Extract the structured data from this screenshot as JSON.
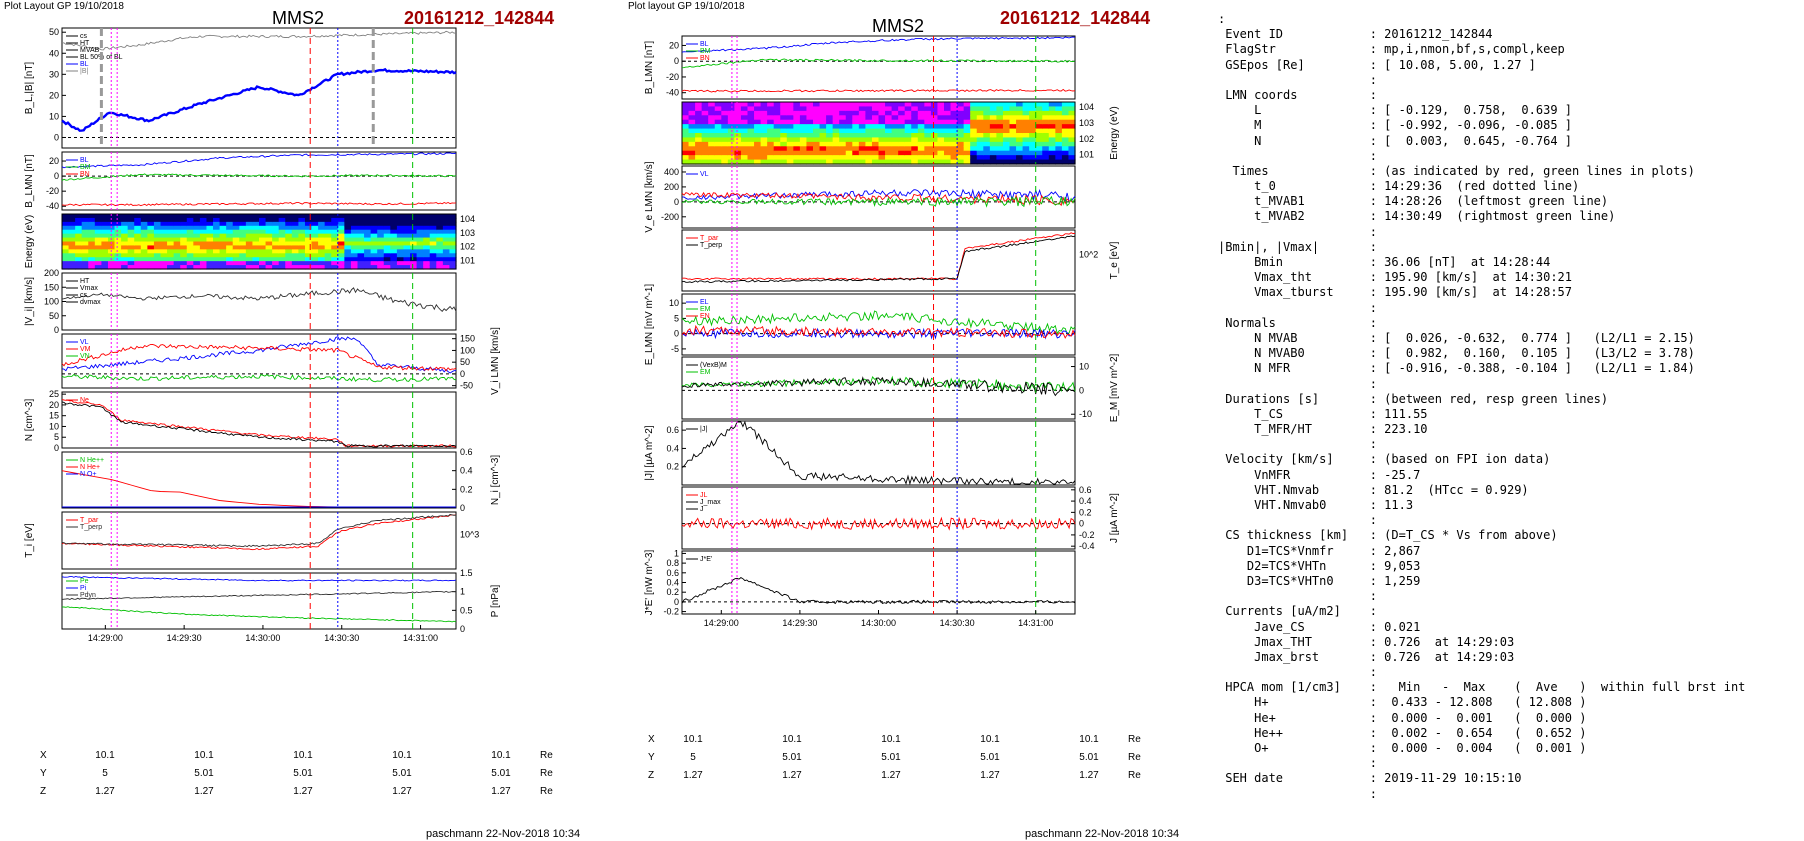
{
  "left": {
    "layout_label": "Plot Layout GP 19/10/2018",
    "spacecraft": "MMS2",
    "event": "20161212_142844",
    "footer": "paschmann 22-Nov-2018 10:34",
    "time_ticks": [
      "14:29:00",
      "14:29:30",
      "14:30:00",
      "14:30:30",
      "14:31:00"
    ],
    "coords": [
      {
        "label": "X",
        "values": [
          "10.1",
          "10.1",
          "10.1",
          "10.1",
          "10.1"
        ],
        "unit": "Re"
      },
      {
        "label": "Y",
        "values": [
          "5",
          "5.01",
          "5.01",
          "5.01",
          "5.01"
        ],
        "unit": "Re"
      },
      {
        "label": "Z",
        "values": [
          "1.27",
          "1.27",
          "1.27",
          "1.27",
          "1.27"
        ],
        "unit": "Re"
      }
    ]
  },
  "right": {
    "layout_label": "Plot layout GP 19/10/2018",
    "spacecraft": "MMS2",
    "event": "20161212_142844",
    "footer": "paschmann 22-Nov-2018 10:34",
    "time_ticks": [
      "14:29:00",
      "14:29:30",
      "14:30:00",
      "14:30:30",
      "14:31:00"
    ],
    "coords": [
      {
        "label": "X",
        "values": [
          "10.1",
          "10.1",
          "10.1",
          "10.1",
          "10.1"
        ],
        "unit": "Re"
      },
      {
        "label": "Y",
        "values": [
          "5",
          "5.01",
          "5.01",
          "5.01",
          "5.01"
        ],
        "unit": "Re"
      },
      {
        "label": "Z",
        "values": [
          "1.27",
          "1.27",
          "1.27",
          "1.27",
          "1.27"
        ],
        "unit": "Re"
      }
    ]
  },
  "info_lines": [
    ":",
    " Event ID            : 20161212_142844",
    " FlagStr             : mp,i,nmon,bf,s,compl,keep",
    " GSEpos [Re]         : [ 10.08, 5.00, 1.27 ]",
    "                     :",
    " LMN coords          :",
    "     L               : [ -0.129,  0.758,  0.639 ]",
    "     M               : [ -0.992, -0.096, -0.085 ]",
    "     N               : [  0.003,  0.645, -0.764 ]",
    "                     :",
    "  Times              : (as indicated by red, green lines in plots)",
    "     t_0             : 14:29:36  (red dotted line)",
    "     t_MVAB1         : 14:28:26  (leftmost green line)",
    "     t_MVAB2         : 14:30:49  (rightmost green line)",
    "                     :",
    "|Bmin|, |Vmax|       :",
    "     Bmin            : 36.06 [nT]  at 14:28:44",
    "     Vmax_tht        : 195.90 [km/s]  at 14:30:21",
    "     Vmax_tburst     : 195.90 [km/s]  at 14:28:57",
    "                     :",
    " Normals             :",
    "     N MVAB          : [  0.026, -0.632,  0.774 ]   (L2/L1 = 2.15)",
    "     N MVAB0         : [  0.982,  0.160,  0.105 ]   (L3/L2 = 3.78)",
    "     N MFR           : [ -0.916, -0.388, -0.104 ]   (L2/L1 = 1.84)",
    "                     :",
    " Durations [s]       : (between red, resp green lines)",
    "     T_CS            : 111.55",
    "     T_MFR/HT        : 223.10",
    "                     :",
    " Velocity [km/s]     : (based on FPI ion data)",
    "     VnMFR           : -25.7",
    "     VHT.Nmvab       : 81.2  (HTcc = 0.929)",
    "     VHT.Nmvab0      : 11.3",
    "                     :",
    " CS thickness [km]   : (D=T_CS * Vs from above)",
    "    D1=TCS*Vnmfr     : 2,867",
    "    D2=TCS*VHTn      : 9,053",
    "    D3=TCS*VHTn0     : 1,259",
    "                     :",
    " Currents [uA/m2]    :",
    "     Jave_CS         : 0.021",
    "     Jmax_THT        : 0.726  at 14:29:03",
    "     Jmax_brst       : 0.726  at 14:29:03",
    "                     :",
    " HPCA mom [1/cm3]    :   Min   -  Max    (  Ave   )  within full brst int",
    "     H+              :  0.433 - 12.808   ( 12.808 )",
    "     He+             :  0.000 -  0.001   (  0.000 )",
    "     He++            :  0.002 -  0.654   (  0.652 )",
    "     O+              :  0.000 -  0.004   (  0.001 )",
    "                     :",
    " SEH date            : 2019-11-29 10:15:10",
    "                     :"
  ],
  "chart_data": [
    {
      "type": "line",
      "panel": "left-B",
      "ylabel": "B_L,|B| [nT]",
      "ylim": [
        -5,
        52
      ],
      "yticks": [
        0,
        10,
        20,
        30,
        40,
        50
      ],
      "legend": [
        "cs",
        "HT",
        "MVAB",
        "BL 50% of BL",
        "BL",
        "|B|"
      ],
      "series": [
        {
          "name": "|B|",
          "color": "#808080",
          "x": [
            0,
            0.1,
            0.2,
            0.3,
            0.35,
            0.5,
            0.6,
            0.8,
            1
          ],
          "y": [
            45,
            42,
            44,
            47,
            48,
            48,
            48,
            49,
            50
          ]
        },
        {
          "name": "BL",
          "color": "#0000ff",
          "x": [
            0,
            0.05,
            0.12,
            0.22,
            0.35,
            0.5,
            0.6,
            0.7,
            0.8,
            1
          ],
          "y": [
            8,
            3,
            12,
            8,
            16,
            24,
            20,
            30,
            32,
            31
          ]
        }
      ]
    },
    {
      "type": "line",
      "panel": "left-BLMN",
      "ylabel": "B_LMN [nT]",
      "ylim": [
        -45,
        32
      ],
      "yticks": [
        -40,
        -20,
        0,
        20
      ],
      "legend": [
        "BL",
        "BM",
        "BN"
      ],
      "series": [
        {
          "name": "BL",
          "color": "#0000ff",
          "x": [
            0,
            0.2,
            0.4,
            0.6,
            0.8,
            1
          ],
          "y": [
            12,
            15,
            24,
            28,
            29,
            30
          ]
        },
        {
          "name": "BM",
          "color": "#00c000",
          "x": [
            0,
            0.2,
            0.4,
            0.6,
            0.8,
            1
          ],
          "y": [
            -5,
            2,
            1,
            0,
            1,
            0
          ]
        },
        {
          "name": "BN",
          "color": "#ff0000",
          "x": [
            0,
            0.2,
            0.4,
            0.6,
            0.8,
            1
          ],
          "y": [
            -38,
            -38,
            -37,
            -36,
            -37,
            -36
          ]
        }
      ]
    },
    {
      "type": "heatmap",
      "panel": "left-ion-spectrogram",
      "ylabel": "Energy (eV)",
      "yticks": [
        "10^1",
        "10^2",
        "10^3",
        "10^4"
      ]
    },
    {
      "type": "line",
      "panel": "left-Vi",
      "ylabel": "|V_i| [km/s]",
      "ylim": [
        0,
        200
      ],
      "yticks": [
        0,
        50,
        100,
        150,
        200
      ],
      "legend": [
        "HT",
        "Vmax",
        "cs",
        "dvmax"
      ],
      "series": [
        {
          "name": "|Vi|",
          "color": "#303030",
          "x": [
            0,
            0.1,
            0.2,
            0.35,
            0.5,
            0.65,
            0.75,
            0.85,
            1
          ],
          "y": [
            110,
            125,
            110,
            120,
            110,
            130,
            140,
            100,
            70
          ]
        }
      ]
    },
    {
      "type": "line",
      "panel": "left-ViLMN",
      "ylabel": "V_i LMN [km/s]",
      "ylim": [
        -60,
        170
      ],
      "yticks": [
        -50,
        0,
        50,
        100,
        150
      ],
      "legend": [
        "VL",
        "VM",
        "VN"
      ],
      "series": [
        {
          "name": "VL",
          "color": "#0000ff",
          "x": [
            0,
            0.2,
            0.5,
            0.7,
            0.75,
            0.8,
            1
          ],
          "y": [
            20,
            50,
            100,
            150,
            150,
            40,
            10
          ]
        },
        {
          "name": "VM",
          "color": "#ff0000",
          "x": [
            0,
            0.2,
            0.5,
            0.7,
            0.8,
            1
          ],
          "y": [
            40,
            120,
            110,
            100,
            30,
            20
          ]
        },
        {
          "name": "VN",
          "color": "#00c000",
          "x": [
            0,
            0.2,
            0.5,
            0.7,
            0.8,
            1
          ],
          "y": [
            -10,
            -20,
            -10,
            -20,
            -25,
            -20
          ]
        }
      ]
    },
    {
      "type": "line",
      "panel": "left-N",
      "ylabel": "N [cm^-3]",
      "ylim": [
        0,
        26
      ],
      "yticks": [
        0,
        5,
        10,
        15,
        20,
        25
      ],
      "legend": [
        "Ne"
      ],
      "series": [
        {
          "name": "Ne",
          "color": "#ff0000",
          "x": [
            0,
            0.1,
            0.15,
            0.3,
            0.5,
            0.7,
            0.72,
            1
          ],
          "y": [
            22,
            20,
            13,
            10,
            6,
            4,
            1,
            1
          ]
        },
        {
          "name": "Ni",
          "color": "#000000",
          "x": [
            0,
            0.1,
            0.15,
            0.3,
            0.5,
            0.7,
            0.72,
            1
          ],
          "y": [
            21,
            19,
            12,
            9,
            5,
            3,
            1,
            1
          ]
        }
      ]
    },
    {
      "type": "line",
      "panel": "left-Ni-HPCA",
      "ylabel": "N_i [cm^-3]",
      "ylim": [
        0,
        0.6
      ],
      "yticks": [
        0,
        0.2,
        0.4,
        0.6
      ],
      "legend": [
        "N He++",
        "N He+",
        "N O+"
      ],
      "series": [
        {
          "name": "N He+",
          "color": "#ff0000",
          "x": [
            0,
            0.13,
            0.23,
            0.3,
            0.4,
            0.5,
            0.6,
            0.7,
            0.8,
            1
          ],
          "y": [
            0.4,
            0.3,
            0.18,
            0.17,
            0.08,
            0.04,
            0.02,
            0.01,
            0.005,
            0
          ]
        },
        {
          "name": "N He++",
          "color": "#00c000",
          "x": [
            0,
            1
          ],
          "y": [
            0.003,
            0.002
          ]
        },
        {
          "name": "N O+",
          "color": "#0000ff",
          "x": [
            0,
            1
          ],
          "y": [
            0.001,
            0.001
          ]
        }
      ]
    },
    {
      "type": "line",
      "panel": "left-Ti",
      "ylabel": "T_i [eV]",
      "yticks": [
        "10^3"
      ],
      "legend": [
        "T_par",
        "T_perp"
      ],
      "series": [
        {
          "name": "T_par",
          "color": "#ff0000",
          "x": [
            0,
            0.5,
            0.65,
            0.7,
            0.8,
            1
          ],
          "y": [
            0.45,
            0.35,
            0.4,
            0.65,
            0.8,
            0.95
          ]
        },
        {
          "name": "T_perp",
          "color": "#303030",
          "x": [
            0,
            0.5,
            0.65,
            0.7,
            0.8,
            1
          ],
          "y": [
            0.45,
            0.4,
            0.45,
            0.7,
            0.85,
            0.95
          ]
        }
      ]
    },
    {
      "type": "line",
      "panel": "left-P",
      "ylabel": "P [nPa]",
      "ylim": [
        0,
        1.5
      ],
      "yticks": [
        0,
        0.5,
        1,
        1.5
      ],
      "legend": [
        "Pe",
        "Pi",
        "Pdyn"
      ],
      "xticks": [
        "14:29:00",
        "14:29:30",
        "14:30:00",
        "14:30:30",
        "14:31:00"
      ],
      "series": [
        {
          "name": "Pi",
          "color": "#0000ff",
          "x": [
            0,
            0.5,
            1
          ],
          "y": [
            1.4,
            1.3,
            1.3
          ]
        },
        {
          "name": "Pe",
          "color": "#00c000",
          "x": [
            0,
            0.3,
            0.6,
            1
          ],
          "y": [
            0.6,
            0.4,
            0.3,
            0.2
          ]
        },
        {
          "name": "Pdyn",
          "color": "#303030",
          "x": [
            0,
            0.5,
            1
          ],
          "y": [
            0.8,
            0.9,
            1.0
          ]
        }
      ]
    },
    {
      "type": "line",
      "panel": "right-BLMN",
      "ylabel": "B_LMN [nT]",
      "ylim": [
        -48,
        32
      ],
      "yticks": [
        -40,
        -20,
        0,
        20
      ],
      "legend": [
        "BL",
        "BM",
        "BN"
      ],
      "series": [
        {
          "name": "BL",
          "color": "#0000ff",
          "x": [
            0,
            0.2,
            0.4,
            0.6,
            1
          ],
          "y": [
            12,
            16,
            24,
            28,
            30
          ]
        },
        {
          "name": "BM",
          "color": "#00c000",
          "x": [
            0,
            0.2,
            0.4,
            1
          ],
          "y": [
            -8,
            2,
            1,
            0
          ]
        },
        {
          "name": "BN",
          "color": "#ff0000",
          "x": [
            0,
            1
          ],
          "y": [
            -38,
            -37
          ]
        }
      ]
    },
    {
      "type": "heatmap",
      "panel": "right-electron-spectrogram",
      "ylabel": "Energy (eV)",
      "yticks": [
        "10^1",
        "10^2",
        "10^3",
        "10^4"
      ]
    },
    {
      "type": "line",
      "panel": "right-Ve",
      "ylabel": "V_e LMN [km/s]",
      "ylim": [
        -350,
        480
      ],
      "yticks": [
        -200,
        0,
        200,
        400
      ],
      "legend": [
        "VL"
      ],
      "series": [
        {
          "name": "VL",
          "color": "#0000ff",
          "x": [
            0,
            0.5,
            1
          ],
          "y": [
            50,
            120,
            80
          ]
        },
        {
          "name": "VM",
          "color": "#ff0000",
          "x": [
            0,
            0.5,
            1
          ],
          "y": [
            100,
            60,
            20
          ]
        },
        {
          "name": "VN",
          "color": "#00c000",
          "x": [
            0,
            1
          ],
          "y": [
            0,
            0
          ]
        }
      ]
    },
    {
      "type": "line",
      "panel": "right-Te",
      "ylabel": "T_e [eV]",
      "yticks": [
        "10^2"
      ],
      "legend": [
        "T_par",
        "T_perp"
      ],
      "series": [
        {
          "name": "T_par",
          "color": "#ff0000",
          "x": [
            0,
            0.7,
            0.72,
            1
          ],
          "y": [
            0.2,
            0.2,
            0.7,
            0.95
          ]
        },
        {
          "name": "T_perp",
          "color": "#000000",
          "x": [
            0,
            0.7,
            0.72,
            1
          ],
          "y": [
            0.15,
            0.2,
            0.65,
            0.9
          ]
        }
      ]
    },
    {
      "type": "line",
      "panel": "right-E",
      "ylabel": "E_LMN [mV m^-1]",
      "ylim": [
        -7,
        13
      ],
      "yticks": [
        -5,
        0,
        5,
        10
      ],
      "legend": [
        "EL",
        "EM",
        "EN"
      ],
      "series": [
        {
          "name": "EM",
          "color": "#00c000",
          "x": [
            0,
            0.5,
            1
          ],
          "y": [
            4,
            6,
            1
          ]
        },
        {
          "name": "EL",
          "color": "#0000ff",
          "x": [
            0,
            1
          ],
          "y": [
            0,
            0
          ]
        },
        {
          "name": "EN",
          "color": "#ff0000",
          "x": [
            0,
            1
          ],
          "y": [
            1,
            0
          ]
        }
      ]
    },
    {
      "type": "line",
      "panel": "right-EM",
      "ylabel": "E_M [mV m^-2]",
      "ylim": [
        -12,
        14
      ],
      "yticks": [
        -10,
        0,
        10
      ],
      "legend": [
        "(VexB)M",
        "EM"
      ],
      "series": [
        {
          "name": "EM",
          "color": "#00c000",
          "x": [
            0,
            0.5,
            1
          ],
          "y": [
            2,
            4,
            1
          ]
        },
        {
          "name": "(VexB)M",
          "color": "#000000",
          "x": [
            0,
            0.5,
            1
          ],
          "y": [
            2,
            4,
            0
          ]
        }
      ]
    },
    {
      "type": "line",
      "panel": "right-J",
      "ylabel": "|J| [µA m^-2]",
      "ylim": [
        0,
        0.7
      ],
      "yticks": [
        0.2,
        0.4,
        0.6
      ],
      "legend": [
        "|J|"
      ],
      "series": [
        {
          "name": "|J|",
          "color": "#000000",
          "x": [
            0,
            0.15,
            0.3,
            0.6,
            1
          ],
          "y": [
            0.2,
            0.7,
            0.1,
            0.05,
            0.02
          ]
        }
      ]
    },
    {
      "type": "line",
      "panel": "right-JLMN",
      "ylabel": "J [µA m^-2]",
      "ylim": [
        -0.45,
        0.65
      ],
      "yticks": [
        -0.4,
        -0.2,
        0,
        0.2,
        0.4,
        0.6
      ],
      "legend": [
        "JL",
        "J_max",
        "J"
      ],
      "series": [
        {
          "name": "JL",
          "color": "#ff0000",
          "x": [
            0,
            1
          ],
          "y": [
            0,
            0
          ]
        }
      ]
    },
    {
      "type": "line",
      "panel": "right-JdotE",
      "ylabel": "J*E' [nW m^-3]",
      "ylim": [
        -0.25,
        1.05
      ],
      "yticks": [
        -0.2,
        0,
        0.2,
        0.4,
        0.6,
        0.8,
        1.0
      ],
      "legend": [
        "J*E'"
      ],
      "xticks": [
        "14:29:00",
        "14:29:30",
        "14:30:00",
        "14:30:30",
        "14:31:00"
      ],
      "series": [
        {
          "name": "J*E'",
          "color": "#000000",
          "x": [
            0,
            0.15,
            0.3,
            1
          ],
          "y": [
            0,
            0.5,
            0,
            0
          ]
        }
      ]
    }
  ]
}
